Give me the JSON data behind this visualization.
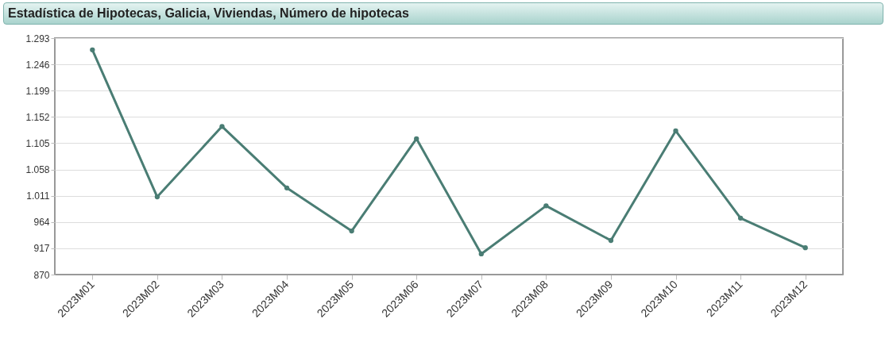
{
  "chart_data": {
    "type": "line",
    "title": "Estadística de Hipotecas, Galicia, Viviendas, Número de hipotecas",
    "categories": [
      "2023M01",
      "2023M02",
      "2023M03",
      "2023M04",
      "2023M05",
      "2023M06",
      "2023M07",
      "2023M08",
      "2023M09",
      "2023M10",
      "2023M11",
      "2023M12"
    ],
    "series": [
      {
        "color": "#4a7d74",
        "values": [
          1272,
          1009,
          1135,
          1025,
          948,
          1113,
          907,
          993,
          931,
          1127,
          971,
          918
        ]
      }
    ],
    "ylim": [
      870,
      1293
    ],
    "yticks": [
      870,
      {
        "value": 917,
        "label": "917"
      },
      {
        "value": 964,
        "label": "964"
      },
      {
        "value": 1011,
        "label": "1.011"
      },
      {
        "value": 1058,
        "label": "1.058"
      },
      {
        "value": 1105,
        "label": "1.105"
      },
      {
        "value": 1152,
        "label": "1.152"
      },
      {
        "value": 1199,
        "label": "1.199"
      },
      {
        "value": 1246,
        "label": "1.246"
      },
      {
        "value": 1293,
        "label": "1.293"
      }
    ],
    "grid": "y",
    "marker": "circle",
    "line_style": "solid"
  }
}
